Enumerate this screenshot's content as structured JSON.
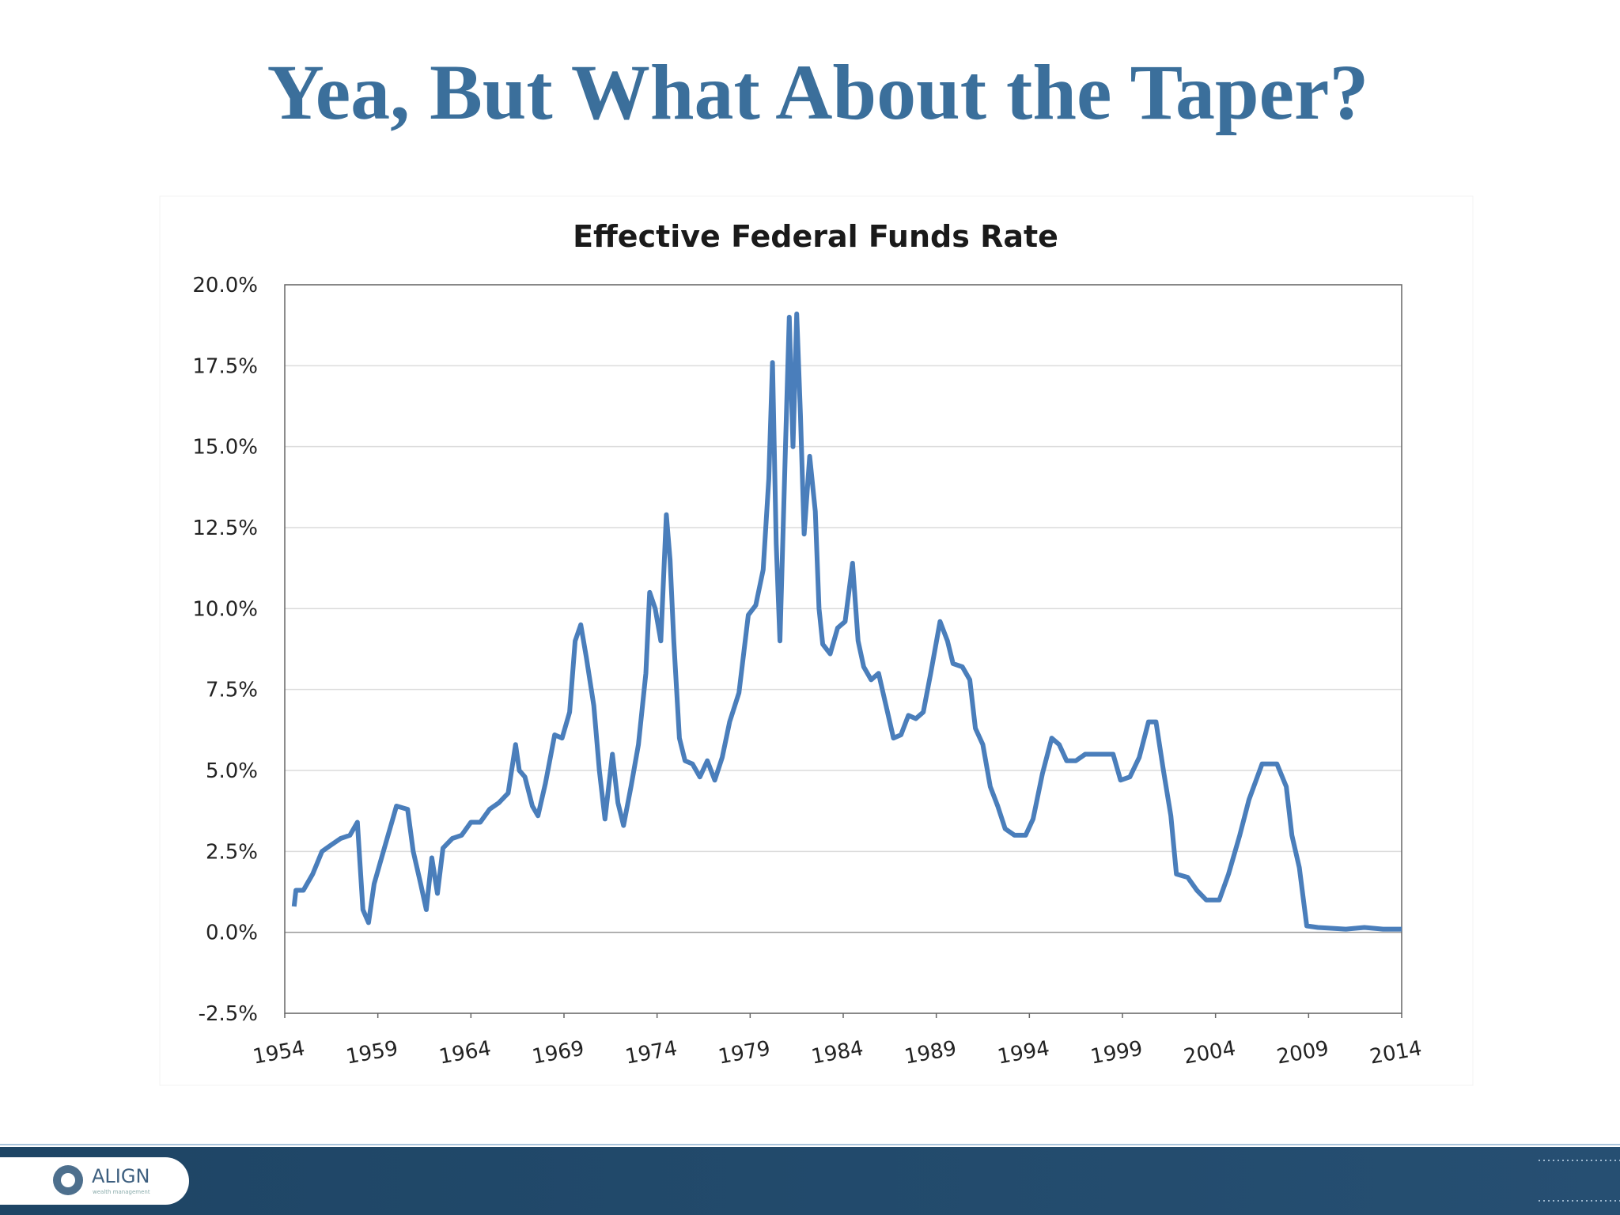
{
  "slide_title": "Yea, But What About the Taper?",
  "logo": {
    "name": "ALIGN",
    "tagline": "wealth management"
  },
  "chart_data": {
    "type": "line",
    "title": "Effective Federal Funds Rate",
    "x": [
      1954.5,
      1954.6,
      1955,
      1955.5,
      1956,
      1956.5,
      1957,
      1957.5,
      1957.9,
      1958.2,
      1958.5,
      1958.8,
      1959.3,
      1959.8,
      1960,
      1960.6,
      1960.9,
      1961.3,
      1961.6,
      1961.9,
      1962.2,
      1962.5,
      1963,
      1963.5,
      1964,
      1964.5,
      1965,
      1965.5,
      1966,
      1966.4,
      1966.6,
      1966.9,
      1967.3,
      1967.6,
      1968,
      1968.5,
      1968.9,
      1969.3,
      1969.6,
      1969.9,
      1970.2,
      1970.6,
      1970.9,
      1971.2,
      1971.6,
      1971.9,
      1972.2,
      1972.6,
      1973,
      1973.4,
      1973.6,
      1973.9,
      1974.2,
      1974.5,
      1974.7,
      1974.9,
      1975.2,
      1975.5,
      1975.9,
      1976.3,
      1976.7,
      1977.1,
      1977.5,
      1977.9,
      1978.4,
      1978.9,
      1979.3,
      1979.7,
      1980,
      1980.2,
      1980.4,
      1980.6,
      1980.9,
      1981.1,
      1981.3,
      1981.5,
      1981.7,
      1981.9,
      1982.2,
      1982.5,
      1982.7,
      1982.9,
      1983.3,
      1983.7,
      1984.1,
      1984.5,
      1984.8,
      1985.1,
      1985.5,
      1985.9,
      1986.3,
      1986.7,
      1987.1,
      1987.5,
      1987.9,
      1988.3,
      1988.7,
      1989.2,
      1989.6,
      1989.9,
      1990.4,
      1990.8,
      1991.1,
      1991.5,
      1991.9,
      1992.3,
      1992.7,
      1993.2,
      1993.8,
      1994.2,
      1994.7,
      1995.2,
      1995.6,
      1996,
      1996.5,
      1997,
      1997.5,
      1998,
      1998.5,
      1998.9,
      1999.4,
      1999.9,
      2000.4,
      2000.8,
      2001.2,
      2001.6,
      2001.9,
      2002.5,
      2003,
      2003.5,
      2004.2,
      2004.7,
      2005.3,
      2005.8,
      2006.5,
      2007.3,
      2007.8,
      2008.1,
      2008.5,
      2008.9,
      2009.5,
      2011,
      2012,
      2013,
      2014
    ],
    "series": [
      {
        "color": "#4a7ebb",
        "values": [
          0.8,
          1.3,
          1.3,
          1.8,
          2.5,
          2.7,
          2.9,
          3.0,
          3.4,
          0.7,
          0.3,
          1.5,
          2.5,
          3.5,
          3.9,
          3.8,
          2.5,
          1.5,
          0.7,
          2.3,
          1.2,
          2.6,
          2.9,
          3.0,
          3.4,
          3.4,
          3.8,
          4.0,
          4.3,
          5.8,
          5.0,
          4.8,
          3.9,
          3.6,
          4.6,
          6.1,
          6.0,
          6.8,
          9.0,
          9.5,
          8.5,
          7.0,
          5.0,
          3.5,
          5.5,
          4.0,
          3.3,
          4.5,
          5.8,
          8.0,
          10.5,
          10.0,
          9.0,
          12.9,
          11.5,
          9.0,
          6.0,
          5.3,
          5.2,
          4.8,
          5.3,
          4.7,
          5.4,
          6.5,
          7.4,
          9.8,
          10.1,
          11.2,
          14.0,
          17.6,
          12.0,
          9.0,
          15.0,
          19.0,
          15.0,
          19.1,
          16.0,
          12.3,
          14.7,
          13.0,
          10.0,
          8.9,
          8.6,
          9.4,
          9.6,
          11.4,
          9.0,
          8.2,
          7.8,
          8.0,
          7.0,
          6.0,
          6.1,
          6.7,
          6.6,
          6.8,
          8.0,
          9.6,
          9.0,
          8.3,
          8.2,
          7.8,
          6.3,
          5.8,
          4.5,
          3.9,
          3.2,
          3.0,
          3.0,
          3.5,
          4.9,
          6.0,
          5.8,
          5.3,
          5.3,
          5.5,
          5.5,
          5.5,
          5.5,
          4.7,
          4.8,
          5.4,
          6.5,
          6.5,
          5.0,
          3.6,
          1.8,
          1.7,
          1.3,
          1.0,
          1.0,
          1.8,
          3.0,
          4.1,
          5.2,
          5.2,
          4.5,
          3.0,
          2.0,
          0.2,
          0.15,
          0.1,
          0.15,
          0.1,
          0.1
        ]
      }
    ],
    "xlim": [
      1954,
      2014
    ],
    "xticks": [
      1954,
      1959,
      1964,
      1969,
      1974,
      1979,
      1984,
      1989,
      1994,
      1999,
      2004,
      2009,
      2014
    ],
    "ylim": [
      -2.5,
      20
    ],
    "yticks": [
      {
        "value": -2.5,
        "label": "-2.5%"
      },
      {
        "value": 0,
        "label": "0.0%"
      },
      {
        "value": 2.5,
        "label": "2.5%"
      },
      {
        "value": 5,
        "label": "5.0%"
      },
      {
        "value": 7.5,
        "label": "7.5%"
      },
      {
        "value": 10,
        "label": "10.0%"
      },
      {
        "value": 12.5,
        "label": "12.5%"
      },
      {
        "value": 15,
        "label": "15.0%"
      },
      {
        "value": 17.5,
        "label": "17.5%"
      },
      {
        "value": 20,
        "label": "20.0%"
      }
    ],
    "grid": true
  }
}
